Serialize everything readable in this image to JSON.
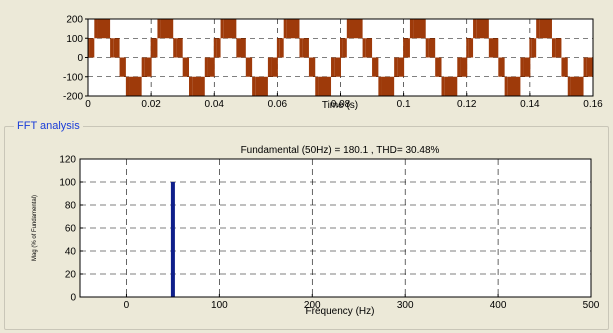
{
  "colors": {
    "panel_bg": "#ece9d8",
    "plot_bg": "#ffffff",
    "waveform": "#9e3a0a",
    "fft_bar": "#0f1f8a",
    "group_title": "#1a3cd8"
  },
  "fft_panel": {
    "title": "FFT analysis"
  },
  "chart_data": [
    {
      "type": "line",
      "title": "",
      "xlabel": "Time (s)",
      "ylabel": "",
      "xlim": [
        0,
        0.16
      ],
      "ylim": [
        -200,
        200
      ],
      "xticks": [
        "0",
        "0.02",
        "0.04",
        "0.06",
        "0.08",
        "0.1",
        "0.12",
        "0.14",
        "0.16"
      ],
      "yticks": [
        "200",
        "100",
        "0",
        "-100",
        "-200"
      ],
      "grid": true,
      "series": [
        {
          "waveform": "multilevel stepped PWM",
          "frequency_hz": 50,
          "levels": [
            -200,
            -100,
            0,
            100,
            200
          ],
          "cycles": 8
        }
      ]
    },
    {
      "type": "bar",
      "title": "Fundamental (50Hz) = 180.1 , THD= 30.48%",
      "xlabel": "Frequency (Hz)",
      "ylabel": "Mag (% of Fundamental)",
      "xlim": [
        -50,
        500
      ],
      "ylim": [
        0,
        120
      ],
      "xticks": [
        "0",
        "100",
        "200",
        "300",
        "400",
        "500"
      ],
      "yticks": [
        "120",
        "100",
        "80",
        "60",
        "40",
        "20",
        "0"
      ],
      "grid": true,
      "bars": [
        {
          "x": 50,
          "value": 100
        }
      ]
    }
  ]
}
